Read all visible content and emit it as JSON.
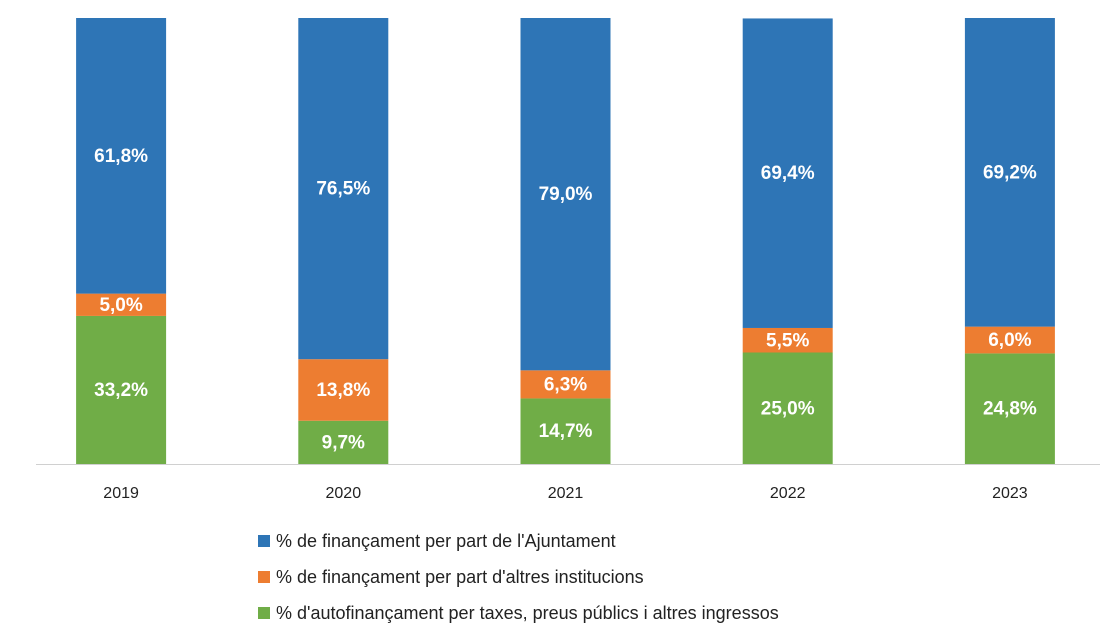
{
  "chart_data": {
    "type": "stacked_bar",
    "categories": [
      "2019",
      "2020",
      "2021",
      "2022",
      "2023"
    ],
    "series": [
      {
        "name": "% de finançament per part de l'Ajuntament",
        "color": "#2e75b6",
        "values": [
          61.8,
          76.5,
          79.0,
          69.4,
          69.2
        ],
        "value_labels": [
          "61,8%",
          "76,5%",
          "79,0%",
          "69,4%",
          "69,2%"
        ]
      },
      {
        "name": "% de finançament per part d'altres institucions",
        "color": "#ed7d31",
        "values": [
          5.0,
          13.8,
          6.3,
          5.5,
          6.0
        ],
        "value_labels": [
          "5,0%",
          "13,8%",
          "6,3%",
          "5,5%",
          "6,0%"
        ]
      },
      {
        "name": "% d'autofinançament per taxes, preus públics i altres ingressos",
        "color": "#70ad47",
        "values": [
          33.2,
          9.7,
          14.7,
          25.0,
          24.8
        ],
        "value_labels": [
          "33,2%",
          "9,7%",
          "14,7%",
          "25,0%",
          "24,8%"
        ]
      }
    ],
    "ylim": [
      0,
      100
    ]
  }
}
